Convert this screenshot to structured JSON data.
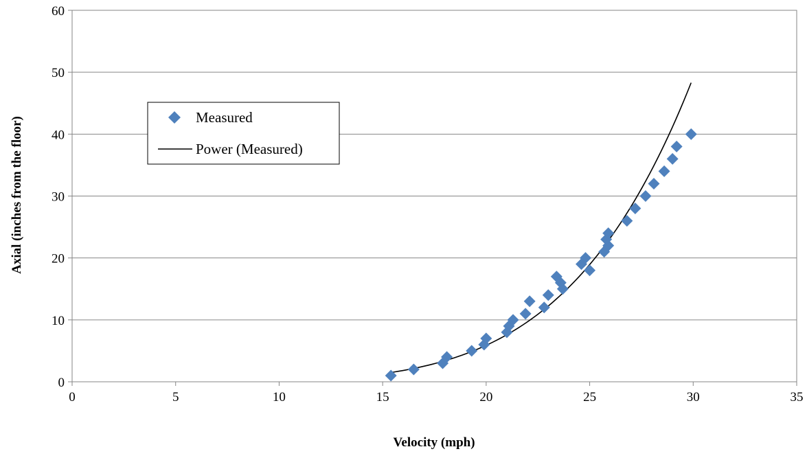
{
  "chart_data": {
    "type": "scatter",
    "title": "",
    "xlabel": "Velocity (mph)",
    "ylabel": "Axial (inches from the floor)",
    "xlim": [
      0,
      35
    ],
    "ylim": [
      0,
      60
    ],
    "xticks": [
      0,
      5,
      10,
      15,
      20,
      25,
      30,
      35
    ],
    "yticks": [
      0,
      10,
      20,
      30,
      40,
      50,
      60
    ],
    "x_tick_labels": [
      "0",
      "5",
      "10",
      "15",
      "20",
      "25",
      "30",
      "35"
    ],
    "y_tick_labels": [
      "0",
      "10",
      "20",
      "30",
      "40",
      "50",
      "60"
    ],
    "grid": "horizontal",
    "legend": {
      "placement": "upper-left",
      "entries": [
        "Measured",
        "Power (Measured)"
      ]
    },
    "series": [
      {
        "name": "Measured",
        "marker": "diamond",
        "color": "#4f81bd",
        "points": [
          [
            15.4,
            1
          ],
          [
            16.5,
            2
          ],
          [
            17.9,
            3
          ],
          [
            18.1,
            4
          ],
          [
            19.3,
            5
          ],
          [
            19.9,
            6
          ],
          [
            20.0,
            7
          ],
          [
            21.0,
            8
          ],
          [
            21.1,
            9
          ],
          [
            21.3,
            10
          ],
          [
            21.9,
            11
          ],
          [
            22.8,
            12
          ],
          [
            22.1,
            13
          ],
          [
            23.0,
            14
          ],
          [
            23.7,
            15
          ],
          [
            23.6,
            16
          ],
          [
            23.4,
            17
          ],
          [
            25.0,
            18
          ],
          [
            24.6,
            19
          ],
          [
            24.8,
            20
          ],
          [
            25.7,
            21
          ],
          [
            25.9,
            22
          ],
          [
            25.8,
            23
          ],
          [
            25.9,
            24
          ],
          [
            26.8,
            26
          ],
          [
            27.2,
            28
          ],
          [
            27.7,
            30
          ],
          [
            28.1,
            32
          ],
          [
            28.6,
            34
          ],
          [
            29.0,
            36
          ],
          [
            29.2,
            38
          ],
          [
            29.9,
            40
          ]
        ]
      },
      {
        "name": "Power (Measured)",
        "type": "line",
        "color": "#000000",
        "x_range": [
          15.4,
          29.9
        ],
        "y_range": [
          1.5,
          48.3
        ]
      }
    ]
  }
}
